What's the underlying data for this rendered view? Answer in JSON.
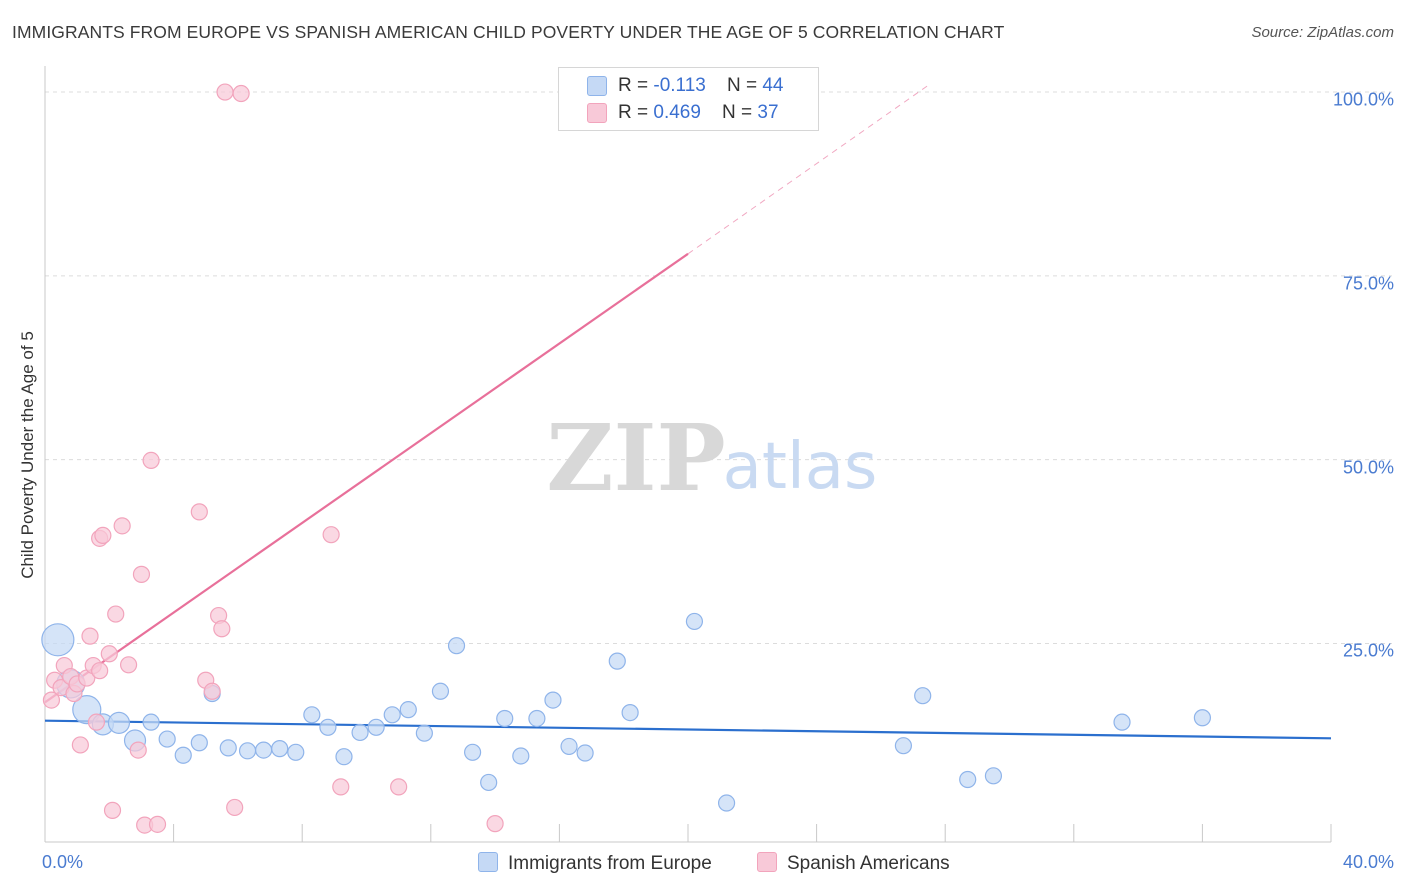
{
  "chart_data": {
    "type": "scatter",
    "title": "IMMIGRANTS FROM EUROPE VS SPANISH AMERICAN CHILD POVERTY UNDER THE AGE OF 5 CORRELATION CHART",
    "source": "Source: ZipAtlas.com",
    "xlabel": "",
    "ylabel": "Child Poverty Under the Age of 5",
    "xlim": [
      0,
      40
    ],
    "ylim": [
      -2,
      103
    ],
    "x_tick_labels": [
      "0.0%",
      "40.0%"
    ],
    "y_ticks": [
      {
        "value": 25,
        "label": "25.0%"
      },
      {
        "value": 50,
        "label": "50.0%"
      },
      {
        "value": 75,
        "label": "75.0%"
      },
      {
        "value": 100,
        "label": "100.0%"
      }
    ],
    "watermark": {
      "zip": "ZIP",
      "atlas": "atlas"
    },
    "legend": [
      {
        "series": "Immigrants from Europe",
        "r_label": "R = ",
        "r_value": "-0.113",
        "n_label": "N = ",
        "n_value": "44"
      },
      {
        "series": "Spanish Americans",
        "r_label": "R = ",
        "r_value": "0.469",
        "n_label": "N = ",
        "n_value": "37"
      }
    ],
    "series": [
      {
        "name": "Immigrants from Europe",
        "color": "#8fb4ea",
        "fill": "#c5d9f5",
        "line_color": "#2b6fce",
        "trend": {
          "x0": 0,
          "y0": 14.5,
          "x1": 40,
          "y1": 12.1
        },
        "points": [
          {
            "x": 0.4,
            "y": 25.5,
            "size": "xl"
          },
          {
            "x": 0.8,
            "y": 19.5,
            "size": "lg"
          },
          {
            "x": 1.3,
            "y": 16.0,
            "size": "lg"
          },
          {
            "x": 1.8,
            "y": 14.0,
            "size": "md"
          },
          {
            "x": 2.3,
            "y": 14.2,
            "size": "md"
          },
          {
            "x": 2.8,
            "y": 11.8,
            "size": "md"
          },
          {
            "x": 3.3,
            "y": 14.3,
            "size": "sm"
          },
          {
            "x": 3.8,
            "y": 12.0,
            "size": "sm"
          },
          {
            "x": 4.3,
            "y": 9.8,
            "size": "sm"
          },
          {
            "x": 4.8,
            "y": 11.5,
            "size": "sm"
          },
          {
            "x": 5.2,
            "y": 18.2,
            "size": "sm"
          },
          {
            "x": 5.7,
            "y": 10.8,
            "size": "sm"
          },
          {
            "x": 6.3,
            "y": 10.4,
            "size": "sm"
          },
          {
            "x": 6.8,
            "y": 10.5,
            "size": "sm"
          },
          {
            "x": 7.3,
            "y": 10.7,
            "size": "sm"
          },
          {
            "x": 7.8,
            "y": 10.2,
            "size": "sm"
          },
          {
            "x": 8.3,
            "y": 15.3,
            "size": "sm"
          },
          {
            "x": 8.8,
            "y": 13.6,
            "size": "sm"
          },
          {
            "x": 9.3,
            "y": 9.6,
            "size": "sm"
          },
          {
            "x": 9.8,
            "y": 12.9,
            "size": "sm"
          },
          {
            "x": 10.3,
            "y": 13.6,
            "size": "sm"
          },
          {
            "x": 10.8,
            "y": 15.3,
            "size": "sm"
          },
          {
            "x": 11.3,
            "y": 16.0,
            "size": "sm"
          },
          {
            "x": 11.8,
            "y": 12.8,
            "size": "sm"
          },
          {
            "x": 12.3,
            "y": 18.5,
            "size": "sm"
          },
          {
            "x": 12.8,
            "y": 24.7,
            "size": "sm"
          },
          {
            "x": 13.3,
            "y": 10.2,
            "size": "sm"
          },
          {
            "x": 13.8,
            "y": 6.1,
            "size": "sm"
          },
          {
            "x": 14.3,
            "y": 14.8,
            "size": "sm"
          },
          {
            "x": 14.8,
            "y": 9.7,
            "size": "sm"
          },
          {
            "x": 15.3,
            "y": 14.8,
            "size": "sm"
          },
          {
            "x": 15.8,
            "y": 17.3,
            "size": "sm"
          },
          {
            "x": 16.3,
            "y": 11.0,
            "size": "sm"
          },
          {
            "x": 16.8,
            "y": 10.1,
            "size": "sm"
          },
          {
            "x": 17.8,
            "y": 22.6,
            "size": "sm"
          },
          {
            "x": 18.2,
            "y": 15.6,
            "size": "sm"
          },
          {
            "x": 20.2,
            "y": 28.0,
            "size": "sm"
          },
          {
            "x": 21.2,
            "y": 3.3,
            "size": "sm"
          },
          {
            "x": 26.7,
            "y": 11.1,
            "size": "sm"
          },
          {
            "x": 27.3,
            "y": 17.9,
            "size": "sm"
          },
          {
            "x": 28.7,
            "y": 6.5,
            "size": "sm"
          },
          {
            "x": 29.5,
            "y": 7.0,
            "size": "sm"
          },
          {
            "x": 33.5,
            "y": 14.3,
            "size": "sm"
          },
          {
            "x": 36.0,
            "y": 14.9,
            "size": "sm"
          }
        ]
      },
      {
        "name": "Spanish Americans",
        "color": "#f2a4bc",
        "fill": "#f8c9d8",
        "line_color": "#e8709a",
        "trend": {
          "x0": 0,
          "y0": 17.0,
          "x1": 20.0,
          "y1": 78.0
        },
        "trend_dash": {
          "x0": 20.0,
          "y0": 78.0,
          "x1": 27.5,
          "y1": 101.0
        },
        "points": [
          {
            "x": 0.2,
            "y": 17.3,
            "size": "sm"
          },
          {
            "x": 0.3,
            "y": 20.0,
            "size": "sm"
          },
          {
            "x": 0.5,
            "y": 19.0,
            "size": "sm"
          },
          {
            "x": 0.6,
            "y": 22.0,
            "size": "sm"
          },
          {
            "x": 0.8,
            "y": 20.5,
            "size": "sm"
          },
          {
            "x": 0.9,
            "y": 18.2,
            "size": "sm"
          },
          {
            "x": 1.0,
            "y": 19.5,
            "size": "sm"
          },
          {
            "x": 1.1,
            "y": 11.2,
            "size": "sm"
          },
          {
            "x": 1.3,
            "y": 20.3,
            "size": "sm"
          },
          {
            "x": 1.4,
            "y": 26.0,
            "size": "sm"
          },
          {
            "x": 1.5,
            "y": 22.0,
            "size": "sm"
          },
          {
            "x": 1.6,
            "y": 14.3,
            "size": "sm"
          },
          {
            "x": 1.7,
            "y": 21.3,
            "size": "sm"
          },
          {
            "x": 1.7,
            "y": 39.3,
            "size": "sm"
          },
          {
            "x": 1.8,
            "y": 39.7,
            "size": "sm"
          },
          {
            "x": 2.0,
            "y": 23.6,
            "size": "sm"
          },
          {
            "x": 2.1,
            "y": 2.3,
            "size": "sm"
          },
          {
            "x": 2.2,
            "y": 29.0,
            "size": "sm"
          },
          {
            "x": 2.4,
            "y": 41.0,
            "size": "sm"
          },
          {
            "x": 2.6,
            "y": 22.1,
            "size": "sm"
          },
          {
            "x": 2.9,
            "y": 10.5,
            "size": "sm"
          },
          {
            "x": 3.0,
            "y": 34.4,
            "size": "sm"
          },
          {
            "x": 3.1,
            "y": 0.3,
            "size": "sm"
          },
          {
            "x": 3.3,
            "y": 49.9,
            "size": "sm"
          },
          {
            "x": 3.5,
            "y": 0.4,
            "size": "sm"
          },
          {
            "x": 4.8,
            "y": 42.9,
            "size": "sm"
          },
          {
            "x": 5.0,
            "y": 20.0,
            "size": "sm"
          },
          {
            "x": 5.2,
            "y": 18.5,
            "size": "sm"
          },
          {
            "x": 5.4,
            "y": 28.8,
            "size": "sm"
          },
          {
            "x": 5.5,
            "y": 27.0,
            "size": "sm"
          },
          {
            "x": 5.6,
            "y": 100.0,
            "size": "sm"
          },
          {
            "x": 5.9,
            "y": 2.7,
            "size": "sm"
          },
          {
            "x": 6.1,
            "y": 99.8,
            "size": "sm"
          },
          {
            "x": 8.9,
            "y": 39.8,
            "size": "sm"
          },
          {
            "x": 9.2,
            "y": 5.5,
            "size": "sm"
          },
          {
            "x": 11.0,
            "y": 5.5,
            "size": "sm"
          },
          {
            "x": 14.0,
            "y": 0.5,
            "size": "sm"
          }
        ]
      }
    ]
  }
}
